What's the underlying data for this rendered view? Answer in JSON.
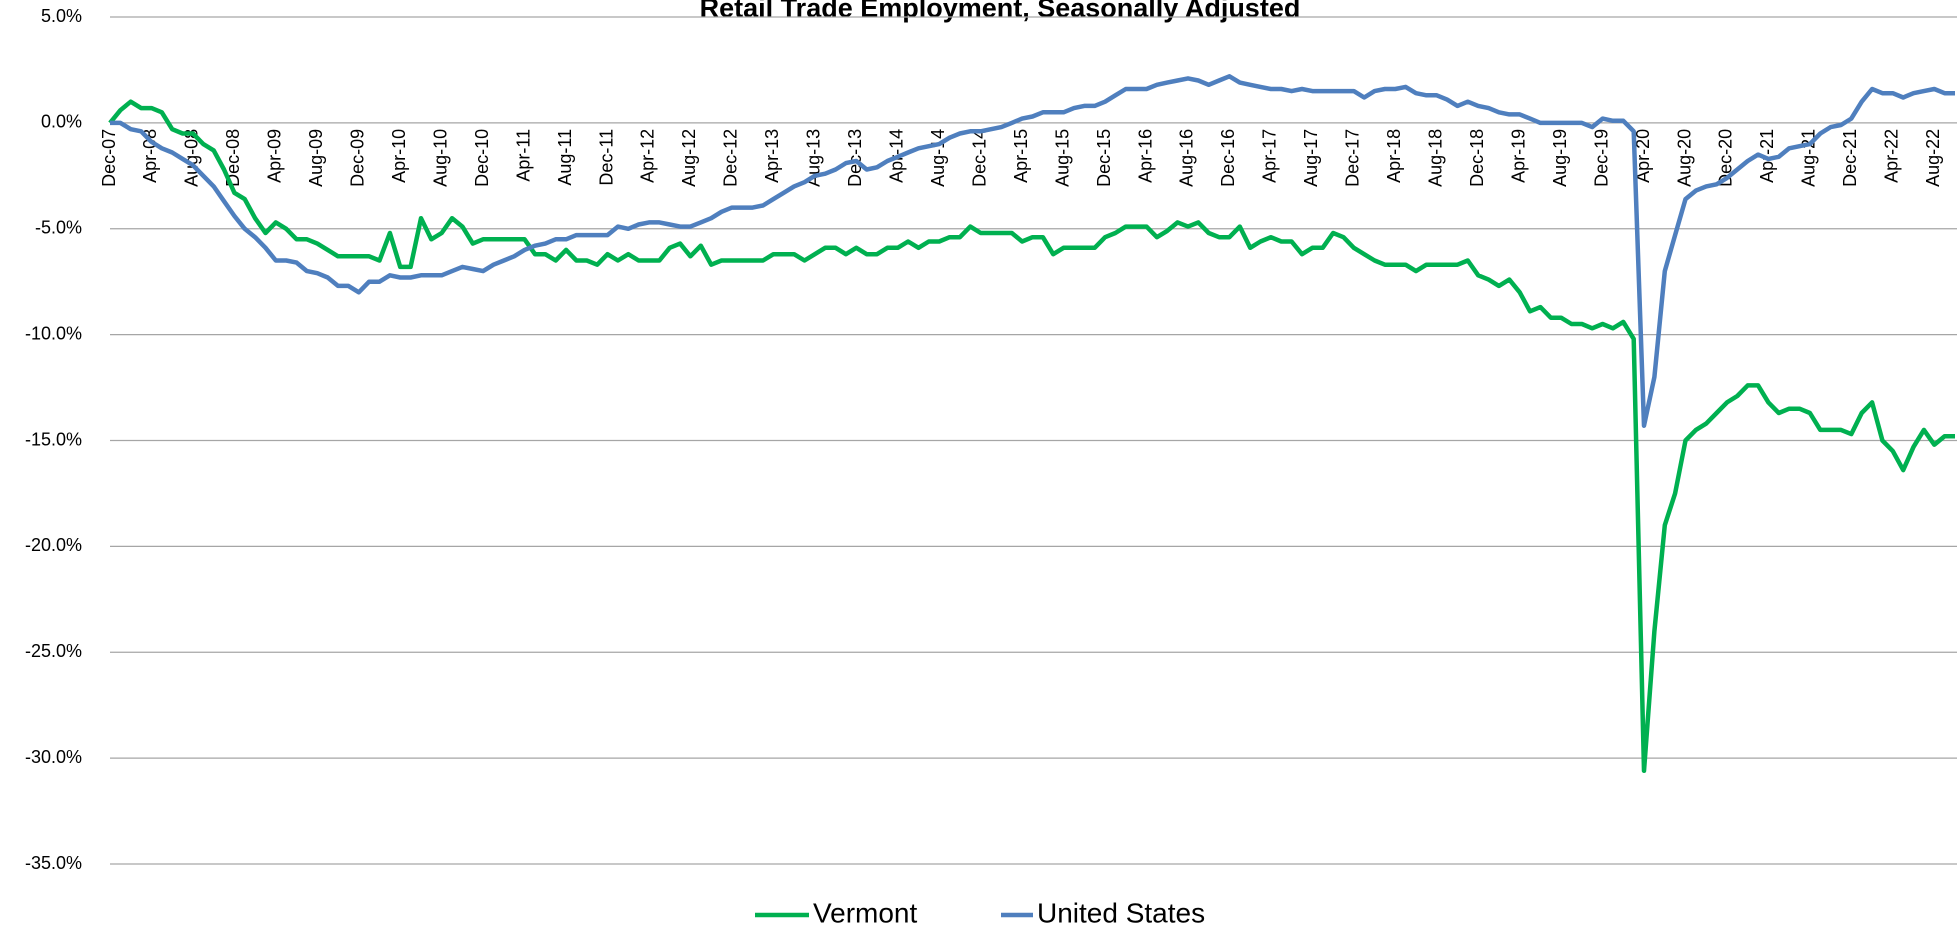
{
  "chart_data": {
    "type": "line",
    "title": "Retail Trade Employment, Seasonally Adjusted",
    "categories": [
      "Dec-07",
      null,
      null,
      null,
      "Apr-08",
      null,
      null,
      null,
      "Aug-08",
      null,
      null,
      null,
      "Dec-08",
      null,
      null,
      null,
      "Apr-09",
      null,
      null,
      null,
      "Aug-09",
      null,
      null,
      null,
      "Dec-09",
      null,
      null,
      null,
      "Apr-10",
      null,
      null,
      null,
      "Aug-10",
      null,
      null,
      null,
      "Dec-10",
      null,
      null,
      null,
      "Apr-11",
      null,
      null,
      null,
      "Aug-11",
      null,
      null,
      null,
      "Dec-11",
      null,
      null,
      null,
      "Apr-12",
      null,
      null,
      null,
      "Aug-12",
      null,
      null,
      null,
      "Dec-12",
      null,
      null,
      null,
      "Apr-13",
      null,
      null,
      null,
      "Aug-13",
      null,
      null,
      null,
      "Dec-13",
      null,
      null,
      null,
      "Apr-14",
      null,
      null,
      null,
      "Aug-14",
      null,
      null,
      null,
      "Dec-14",
      null,
      null,
      null,
      "Apr-15",
      null,
      null,
      null,
      "Aug-15",
      null,
      null,
      null,
      "Dec-15",
      null,
      null,
      null,
      "Apr-16",
      null,
      null,
      null,
      "Aug-16",
      null,
      null,
      null,
      "Dec-16",
      null,
      null,
      null,
      "Apr-17",
      null,
      null,
      null,
      "Aug-17",
      null,
      null,
      null,
      "Dec-17",
      null,
      null,
      null,
      "Apr-18",
      null,
      null,
      null,
      "Aug-18",
      null,
      null,
      null,
      "Dec-18",
      null,
      null,
      null,
      "Apr-19",
      null,
      null,
      null,
      "Aug-19",
      null,
      null,
      null,
      "Dec-19",
      null,
      null,
      null,
      "Apr-20",
      null,
      null,
      null,
      "Aug-20",
      null,
      null,
      null,
      "Dec-20",
      null,
      null,
      null,
      "Apr-21",
      null,
      null,
      null,
      "Aug-21",
      null,
      null,
      null,
      "Dec-21",
      null,
      null,
      null,
      "Apr-22",
      null,
      null,
      null,
      "Aug-22",
      null,
      null
    ],
    "series": [
      {
        "name": "Vermont",
        "color": "#00b050",
        "values": [
          0,
          0.6,
          1.0,
          0.7,
          0.7,
          0.5,
          -0.3,
          -0.5,
          -0.5,
          -1.0,
          -1.3,
          -2.2,
          -3.3,
          -3.6,
          -4.5,
          -5.2,
          -4.7,
          -5.0,
          -5.5,
          -5.5,
          -5.7,
          -6.0,
          -6.3,
          -6.3,
          -6.3,
          -6.3,
          -6.5,
          -5.2,
          -6.8,
          -6.8,
          -4.5,
          -5.5,
          -5.2,
          -4.5,
          -4.9,
          -5.7,
          -5.5,
          -5.5,
          -5.5,
          -5.5,
          -5.5,
          -6.2,
          -6.2,
          -6.5,
          -6.0,
          -6.5,
          -6.5,
          -6.7,
          -6.2,
          -6.5,
          -6.2,
          -6.5,
          -6.5,
          -6.5,
          -5.9,
          -5.7,
          -6.3,
          -5.8,
          -6.7,
          -6.5,
          -6.5,
          -6.5,
          -6.5,
          -6.5,
          -6.2,
          -6.2,
          -6.2,
          -6.5,
          -6.2,
          -5.9,
          -5.9,
          -6.2,
          -5.9,
          -6.2,
          -6.2,
          -5.9,
          -5.9,
          -5.6,
          -5.9,
          -5.6,
          -5.6,
          -5.4,
          -5.4,
          -4.9,
          -5.2,
          -5.2,
          -5.2,
          -5.2,
          -5.6,
          -5.4,
          -5.4,
          -6.2,
          -5.9,
          -5.9,
          -5.9,
          -5.9,
          -5.4,
          -5.2,
          -4.9,
          -4.9,
          -4.9,
          -5.4,
          -5.1,
          -4.7,
          -4.9,
          -4.7,
          -5.2,
          -5.4,
          -5.4,
          -4.9,
          -5.9,
          -5.6,
          -5.4,
          -5.6,
          -5.6,
          -6.2,
          -5.9,
          -5.9,
          -5.2,
          -5.4,
          -5.9,
          -6.2,
          -6.5,
          -6.7,
          -6.7,
          -6.7,
          -7.0,
          -6.7,
          -6.7,
          -6.7,
          -6.7,
          -6.5,
          -7.2,
          -7.4,
          -7.7,
          -7.4,
          -8.0,
          -8.9,
          -8.7,
          -9.2,
          -9.2,
          -9.5,
          -9.5,
          -9.7,
          -9.5,
          -9.7,
          -9.4,
          -10.2,
          -30.6,
          -24,
          -19,
          -17.5,
          -15,
          -14.5,
          -14.2,
          -13.7,
          -13.2,
          -12.9,
          -12.4,
          -12.4,
          -13.2,
          -13.7,
          -13.5,
          -13.5,
          -13.7,
          -14.5,
          -14.5,
          -14.5,
          -14.7,
          -13.7,
          -13.2,
          -15.0,
          -15.5,
          -16.4,
          -15.3,
          -14.5,
          -15.2,
          -14.8,
          -14.8
        ]
      },
      {
        "name": "United States",
        "color": "#4f7fbe",
        "values": [
          0,
          0,
          -0.3,
          -0.4,
          -0.9,
          -1.2,
          -1.4,
          -1.7,
          -2.0,
          -2.5,
          -3.0,
          -3.7,
          -4.4,
          -5.0,
          -5.4,
          -5.9,
          -6.5,
          -6.5,
          -6.6,
          -7.0,
          -7.1,
          -7.3,
          -7.7,
          -7.7,
          -8.0,
          -7.5,
          -7.5,
          -7.2,
          -7.3,
          -7.3,
          -7.2,
          -7.2,
          -7.2,
          -7.0,
          -6.8,
          -6.9,
          -7.0,
          -6.7,
          -6.5,
          -6.3,
          -6.0,
          -5.8,
          -5.7,
          -5.5,
          -5.5,
          -5.3,
          -5.3,
          -5.3,
          -5.3,
          -4.9,
          -5.0,
          -4.8,
          -4.7,
          -4.7,
          -4.8,
          -4.9,
          -4.9,
          -4.7,
          -4.5,
          -4.2,
          -4.0,
          -4.0,
          -4.0,
          -3.9,
          -3.6,
          -3.3,
          -3.0,
          -2.8,
          -2.5,
          -2.4,
          -2.2,
          -1.9,
          -1.8,
          -2.2,
          -2.1,
          -1.8,
          -1.6,
          -1.4,
          -1.2,
          -1.1,
          -1.0,
          -0.7,
          -0.5,
          -0.4,
          -0.4,
          -0.3,
          -0.2,
          0,
          0.2,
          0.3,
          0.5,
          0.5,
          0.5,
          0.7,
          0.8,
          0.8,
          1.0,
          1.3,
          1.6,
          1.6,
          1.6,
          1.8,
          1.9,
          2.0,
          2.1,
          2.0,
          1.8,
          2.0,
          2.2,
          1.9,
          1.8,
          1.7,
          1.6,
          1.6,
          1.5,
          1.6,
          1.5,
          1.5,
          1.5,
          1.5,
          1.5,
          1.2,
          1.5,
          1.6,
          1.6,
          1.7,
          1.4,
          1.3,
          1.3,
          1.1,
          0.8,
          1.0,
          0.8,
          0.7,
          0.5,
          0.4,
          0.4,
          0.2,
          0,
          0,
          0,
          0,
          0,
          -0.2,
          0.2,
          0.1,
          0.1,
          -0.4,
          -14.3,
          -12.0,
          -7.0,
          -5.3,
          -3.6,
          -3.2,
          -3.0,
          -2.9,
          -2.6,
          -2.2,
          -1.8,
          -1.5,
          -1.7,
          -1.6,
          -1.2,
          -1.1,
          -1.0,
          -0.5,
          -0.2,
          -0.1,
          0.2,
          1.0,
          1.6,
          1.4,
          1.4,
          1.2,
          1.4,
          1.5,
          1.6,
          1.4,
          1.4
        ]
      }
    ],
    "ylim": [
      -35,
      5
    ],
    "yticks": [
      {
        "value": -35,
        "label": "-35.0%"
      },
      {
        "value": -30,
        "label": "-30.0%"
      },
      {
        "value": -25,
        "label": "-25.0%"
      },
      {
        "value": -20,
        "label": "-20.0%"
      },
      {
        "value": -15,
        "label": "-15.0%"
      },
      {
        "value": -10,
        "label": "-10.0%"
      },
      {
        "value": -5,
        "label": "-5.0%"
      },
      {
        "value": 0,
        "label": "0.0%"
      },
      {
        "value": 5,
        "label": "5.0%"
      }
    ],
    "grid": true
  }
}
